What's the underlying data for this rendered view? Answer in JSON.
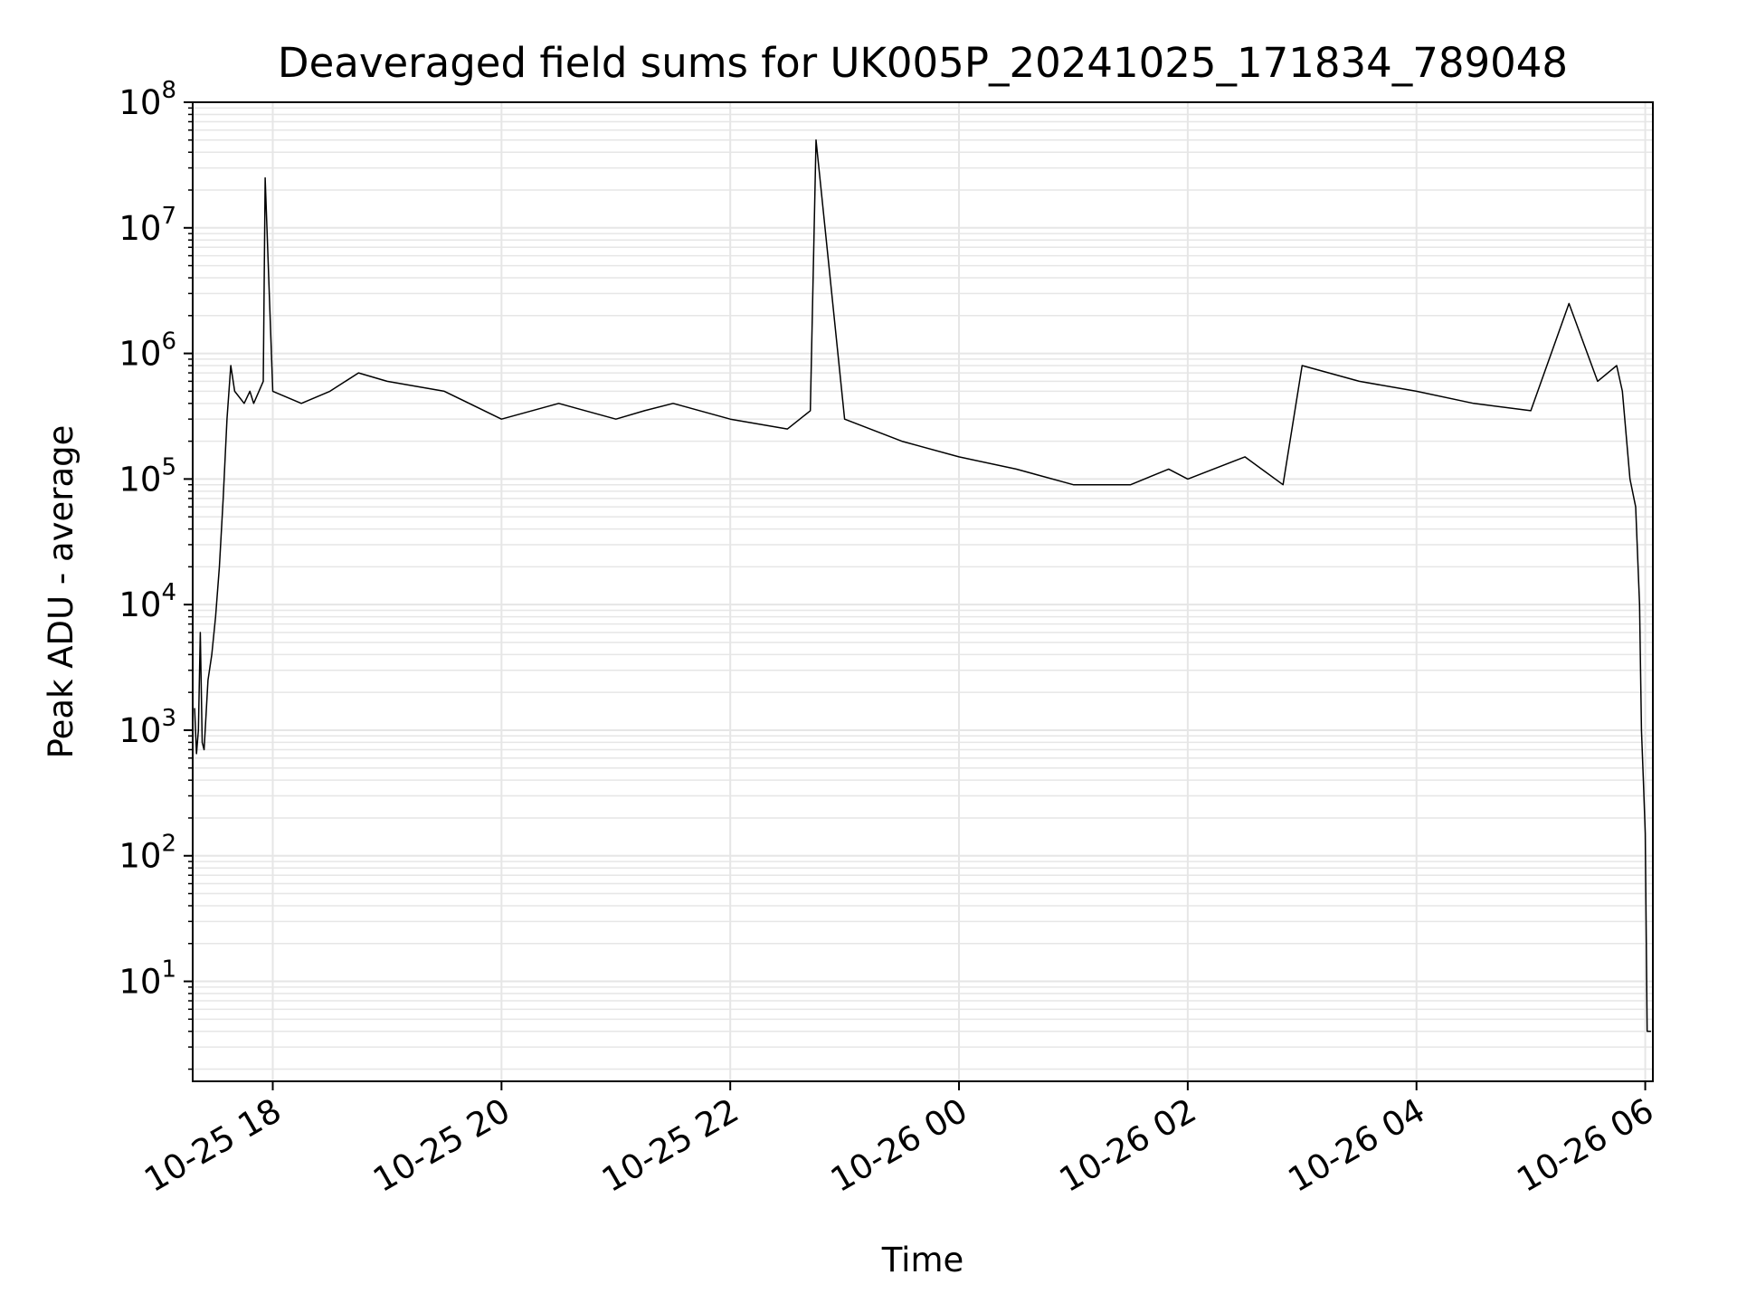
{
  "chart_data": {
    "type": "line",
    "title": "Deaveraged field sums for UK005P_20241025_171834_789048",
    "xlabel": "Time",
    "ylabel": "Peak ADU - average",
    "xscale": "time",
    "yscale": "log",
    "xlim": [
      "2024-10-25T17:18",
      "2024-10-26T06:04"
    ],
    "ylim": [
      1.6,
      100000000
    ],
    "grid": true,
    "legend": "none",
    "x_ticks": [
      {
        "t": "2024-10-25T18:00",
        "label": "10-25 18"
      },
      {
        "t": "2024-10-25T20:00",
        "label": "10-25 20"
      },
      {
        "t": "2024-10-25T22:00",
        "label": "10-25 22"
      },
      {
        "t": "2024-10-26T00:00",
        "label": "10-26 00"
      },
      {
        "t": "2024-10-26T02:00",
        "label": "10-26 02"
      },
      {
        "t": "2024-10-26T04:00",
        "label": "10-26 04"
      },
      {
        "t": "2024-10-26T06:00",
        "label": "10-26 06"
      }
    ],
    "y_ticks": [
      {
        "value": 10,
        "base": "10",
        "exp": "1"
      },
      {
        "value": 100,
        "base": "10",
        "exp": "2"
      },
      {
        "value": 1000,
        "base": "10",
        "exp": "3"
      },
      {
        "value": 10000,
        "base": "10",
        "exp": "4"
      },
      {
        "value": 100000,
        "base": "10",
        "exp": "5"
      },
      {
        "value": 1000000,
        "base": "10",
        "exp": "6"
      },
      {
        "value": 10000000,
        "base": "10",
        "exp": "7"
      },
      {
        "value": 100000000,
        "base": "10",
        "exp": "8"
      }
    ],
    "series": [
      {
        "color": "#000000",
        "x": [
          "2024-10-25T17:19",
          "2024-10-25T17:20",
          "2024-10-25T17:21",
          "2024-10-25T17:22",
          "2024-10-25T17:23",
          "2024-10-25T17:24",
          "2024-10-25T17:26",
          "2024-10-25T17:28",
          "2024-10-25T17:30",
          "2024-10-25T17:32",
          "2024-10-25T17:34",
          "2024-10-25T17:36",
          "2024-10-25T17:38",
          "2024-10-25T17:40",
          "2024-10-25T17:45",
          "2024-10-25T17:48",
          "2024-10-25T17:50",
          "2024-10-25T17:55",
          "2024-10-25T17:56",
          "2024-10-25T18:00",
          "2024-10-25T18:15",
          "2024-10-25T18:30",
          "2024-10-25T18:45",
          "2024-10-25T19:00",
          "2024-10-25T19:30",
          "2024-10-25T20:00",
          "2024-10-25T20:30",
          "2024-10-25T21:00",
          "2024-10-25T21:15",
          "2024-10-25T21:30",
          "2024-10-25T22:00",
          "2024-10-25T22:30",
          "2024-10-25T22:42",
          "2024-10-25T22:45",
          "2024-10-25T23:00",
          "2024-10-25T23:30",
          "2024-10-26T00:00",
          "2024-10-26T00:30",
          "2024-10-26T01:00",
          "2024-10-26T01:30",
          "2024-10-26T01:50",
          "2024-10-26T02:00",
          "2024-10-26T02:30",
          "2024-10-26T02:50",
          "2024-10-26T03:00",
          "2024-10-26T03:30",
          "2024-10-26T04:00",
          "2024-10-26T04:30",
          "2024-10-26T05:00",
          "2024-10-26T05:20",
          "2024-10-26T05:35",
          "2024-10-26T05:45",
          "2024-10-26T05:48",
          "2024-10-26T05:52",
          "2024-10-26T05:55",
          "2024-10-26T05:57",
          "2024-10-26T05:58",
          "2024-10-26T05:59",
          "2024-10-26T06:00",
          "2024-10-26T06:01",
          "2024-10-26T06:03"
        ],
        "y": [
          1500,
          650,
          1000,
          6000,
          800,
          700,
          2500,
          4000,
          8000,
          20000,
          70000,
          300000,
          800000,
          500000,
          400000,
          500000,
          400000,
          600000,
          25000000,
          500000,
          400000,
          500000,
          700000,
          600000,
          500000,
          300000,
          400000,
          300000,
          350000,
          400000,
          300000,
          250000,
          350000,
          50000000,
          300000,
          200000,
          150000,
          120000,
          90000,
          90000,
          120000,
          100000,
          150000,
          90000,
          800000,
          600000,
          500000,
          400000,
          350000,
          2500000,
          600000,
          800000,
          500000,
          100000,
          60000,
          10000,
          1000,
          400,
          150,
          4,
          4
        ]
      }
    ]
  }
}
